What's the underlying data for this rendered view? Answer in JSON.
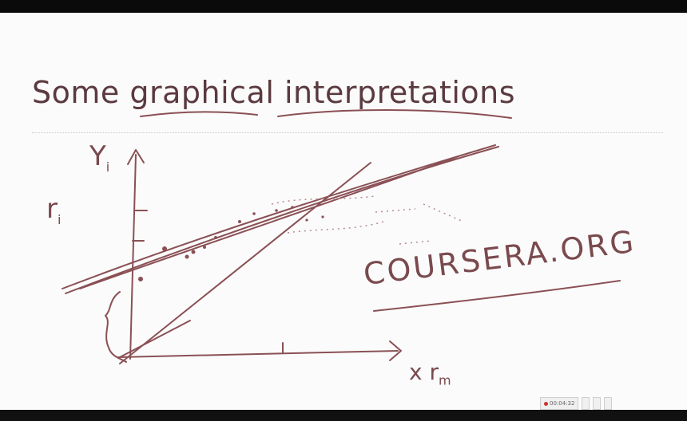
{
  "slide": {
    "title": "Some graphical interpretations",
    "labels": {
      "y_axis": "Y",
      "y_sub": "i",
      "r_label": "r",
      "r_sub": "i",
      "x_axis": "x r",
      "x_sub": "m"
    },
    "watermark": "COURSERA.ORG"
  },
  "taskbar": {
    "items": [
      {
        "label": "00:04:32"
      },
      {
        "label": ""
      },
      {
        "label": ""
      },
      {
        "label": ""
      }
    ]
  },
  "colors": {
    "ink": "#7a4a4e",
    "title": "#5b3a3f",
    "background": "#fbfbfb"
  }
}
